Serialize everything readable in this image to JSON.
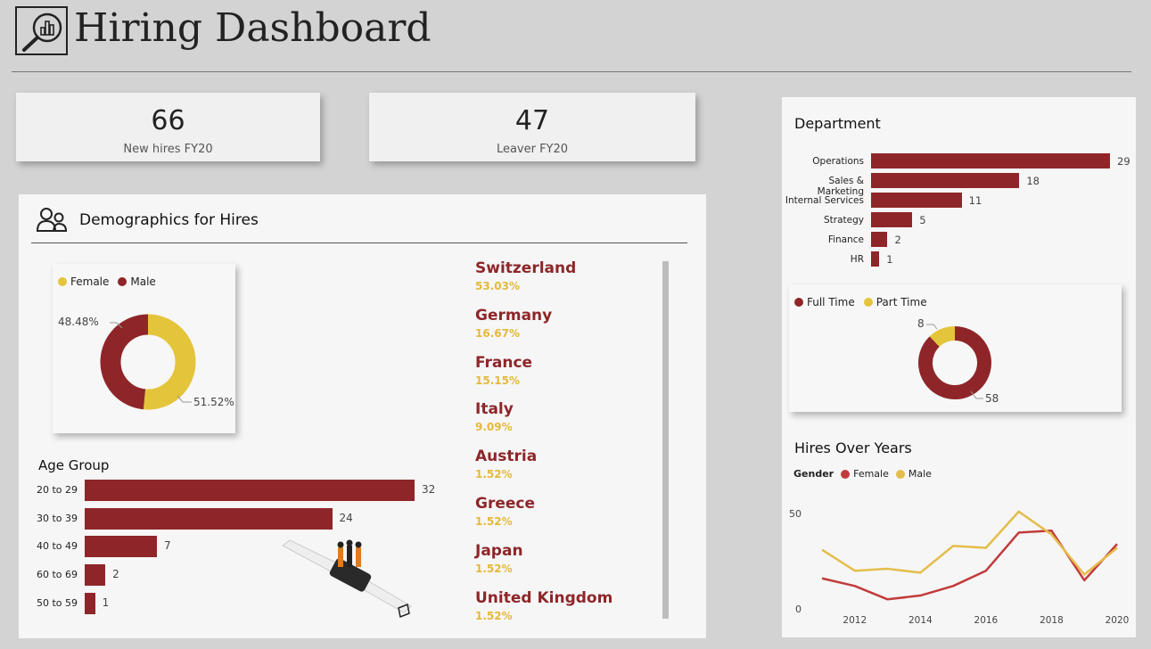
{
  "header": {
    "title": "Hiring Dashboard",
    "logo_icon": "magnifier-chart-icon"
  },
  "kpis": [
    {
      "value": "66",
      "label": "New hires FY20"
    },
    {
      "value": "47",
      "label": "Leaver FY20"
    }
  ],
  "demographics": {
    "title": "Demographics for Hires",
    "icon": "people-icon",
    "gender_legend": [
      {
        "label": "Female",
        "color": "#e4c43a"
      },
      {
        "label": "Male",
        "color": "#8e2629"
      }
    ],
    "gender_labels": {
      "male": "48.48%",
      "female": "51.52%"
    },
    "age_title": "Age Group",
    "countries": [
      {
        "name": "Switzerland",
        "pct": "53.03%"
      },
      {
        "name": "Germany",
        "pct": "16.67%"
      },
      {
        "name": "France",
        "pct": "15.15%"
      },
      {
        "name": "Italy",
        "pct": "9.09%"
      },
      {
        "name": "Austria",
        "pct": "1.52%"
      },
      {
        "name": "Greece",
        "pct": "1.52%"
      },
      {
        "name": "Japan",
        "pct": "1.52%"
      },
      {
        "name": "United Kingdom",
        "pct": "1.52%"
      }
    ]
  },
  "department": {
    "title": "Department",
    "employment_legend": [
      {
        "label": "Full Time",
        "color": "#8e2629"
      },
      {
        "label": "Part Time",
        "color": "#e4c43a"
      }
    ],
    "employment_labels": {
      "part_time": "8",
      "full_time": "58"
    }
  },
  "hires_over_years": {
    "title": "Hires Over Years",
    "legend_title": "Gender",
    "legend": [
      {
        "label": "Female",
        "color": "#c23b3b"
      },
      {
        "label": "Male",
        "color": "#e4bd4a"
      }
    ]
  },
  "chart_data": [
    {
      "type": "pie",
      "categories": [
        "Female",
        "Male"
      ],
      "values": [
        51.52,
        48.48
      ],
      "colors": [
        "#e4c43a",
        "#8e2629"
      ],
      "donut": true,
      "legend": "top-left"
    },
    {
      "type": "bar",
      "orientation": "horizontal",
      "title": "Age Group",
      "categories": [
        "20 to 29",
        "30 to 39",
        "40 to 49",
        "60 to 69",
        "50 to 59"
      ],
      "values": [
        32,
        24,
        7,
        2,
        1
      ]
    },
    {
      "type": "bar",
      "orientation": "horizontal",
      "title": "Department",
      "categories": [
        "Operations",
        "Sales & Marketing",
        "Internal Services",
        "Strategy",
        "Finance",
        "HR"
      ],
      "values": [
        29,
        18,
        11,
        5,
        2,
        1
      ]
    },
    {
      "type": "pie",
      "categories": [
        "Full Time",
        "Part Time"
      ],
      "values": [
        58,
        8
      ],
      "colors": [
        "#8e2629",
        "#e4c43a"
      ],
      "donut": true,
      "legend": "top-left"
    },
    {
      "type": "line",
      "title": "Hires Over Years",
      "x": [
        2011,
        2012,
        2013,
        2014,
        2015,
        2016,
        2017,
        2018,
        2019,
        2020
      ],
      "xticks": [
        "2012",
        "2014",
        "2016",
        "2018",
        "2020"
      ],
      "yticks": [
        "0",
        "50"
      ],
      "ylim": [
        0,
        50
      ],
      "series": [
        {
          "name": "Female",
          "color": "#c23b3b",
          "values": [
            16,
            12,
            5,
            7,
            12,
            20,
            40,
            41,
            15,
            34
          ]
        },
        {
          "name": "Male",
          "color": "#e4bd4a",
          "values": [
            31,
            20,
            21,
            19,
            33,
            32,
            51,
            39,
            18,
            32
          ]
        }
      ],
      "grid": false,
      "legend": "top-left"
    }
  ]
}
